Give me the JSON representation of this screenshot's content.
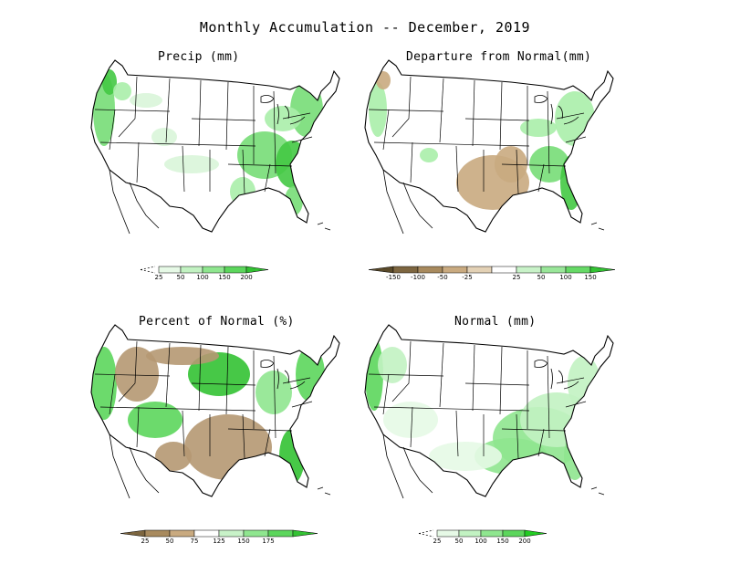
{
  "title": "Monthly Accumulation -- December, 2019",
  "panels": [
    {
      "id": "precip",
      "title": "Precip (mm)",
      "legend": {
        "colors": [
          "#e6f9e6",
          "#c2f2c2",
          "#8fe68f",
          "#5cd65c",
          "#33c233"
        ],
        "ticks": [
          "25",
          "50",
          "100",
          "150",
          "200"
        ],
        "left_open": true
      },
      "hues": [
        "#d9f5d9",
        "#aaeeaa",
        "#77dd77",
        "#44c944"
      ]
    },
    {
      "id": "departure",
      "title": "Departure from Normal(mm)",
      "legend": {
        "colors": [
          "#5a4a2a",
          "#7d6640",
          "#a88a5e",
          "#c9aa80",
          "#e3d1b5",
          "#ffffff",
          "#c8f2c8",
          "#99e699",
          "#66d966",
          "#33c233"
        ],
        "ticks": [
          "-150",
          "-100",
          "-50",
          "-25",
          "25",
          "50",
          "100",
          "150"
        ]
      },
      "hues": [
        "#c9aa80",
        "#aaeeaa",
        "#77dd77",
        "#44c944"
      ]
    },
    {
      "id": "percent",
      "title": "Percent of Normal (%)",
      "legend": {
        "colors": [
          "#7d6640",
          "#a88a5e",
          "#c9aa80",
          "#ffffff",
          "#c8f2c8",
          "#8fe68f",
          "#5cd65c",
          "#33c233"
        ],
        "ticks": [
          "25",
          "50",
          "75",
          "125",
          "150",
          "175"
        ]
      },
      "hues": [
        "#b59872",
        "#8fe68f",
        "#5cd65c",
        "#33c233"
      ]
    },
    {
      "id": "normal",
      "title": "Normal (mm)",
      "legend": {
        "colors": [
          "#e6f9e6",
          "#c2f2c2",
          "#8fe68f",
          "#5cd65c",
          "#22cc22"
        ],
        "ticks": [
          "25",
          "50",
          "100",
          "150",
          "200"
        ],
        "left_open": true
      },
      "hues": [
        "#e6f9e6",
        "#c2f2c2",
        "#8fe68f",
        "#5cd65c"
      ]
    }
  ]
}
